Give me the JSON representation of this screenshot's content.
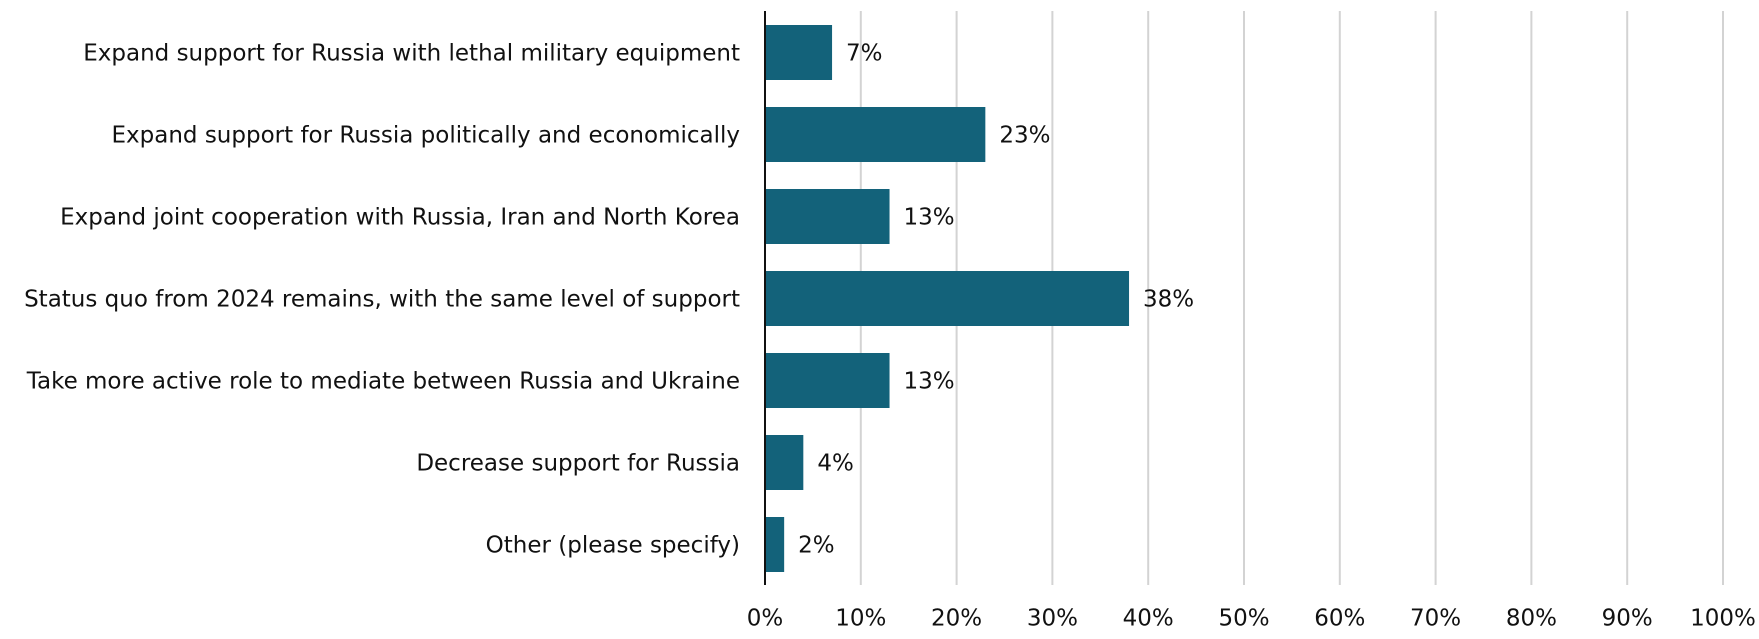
{
  "chart_data": {
    "type": "hbar",
    "categories": [
      "Expand support for Russia with lethal military equipment",
      "Expand support for Russia politically and economically",
      "Expand joint cooperation with Russia, Iran and North Korea",
      "Status quo from 2024 remains, with the same level of support",
      "Take more active role to mediate between Russia and Ukraine",
      "Decrease support for Russia",
      "Other (please specify)"
    ],
    "values": [
      7,
      23,
      13,
      38,
      13,
      4,
      2
    ],
    "value_labels": [
      "7%",
      "23%",
      "13%",
      "38%",
      "13%",
      "4%",
      "2%"
    ],
    "color": "#13627a",
    "xlim": [
      0,
      100
    ],
    "xticks": [
      {
        "value": 0,
        "label": "0%"
      },
      {
        "value": 10,
        "label": "10%"
      },
      {
        "value": 20,
        "label": "20%"
      },
      {
        "value": 30,
        "label": "30%"
      },
      {
        "value": 40,
        "label": "40%"
      },
      {
        "value": 50,
        "label": "50%"
      },
      {
        "value": 60,
        "label": "60%"
      },
      {
        "value": 70,
        "label": "70%"
      },
      {
        "value": 80,
        "label": "80%"
      },
      {
        "value": 90,
        "label": "90%"
      },
      {
        "value": 100,
        "label": "100%"
      }
    ],
    "grid": true
  }
}
